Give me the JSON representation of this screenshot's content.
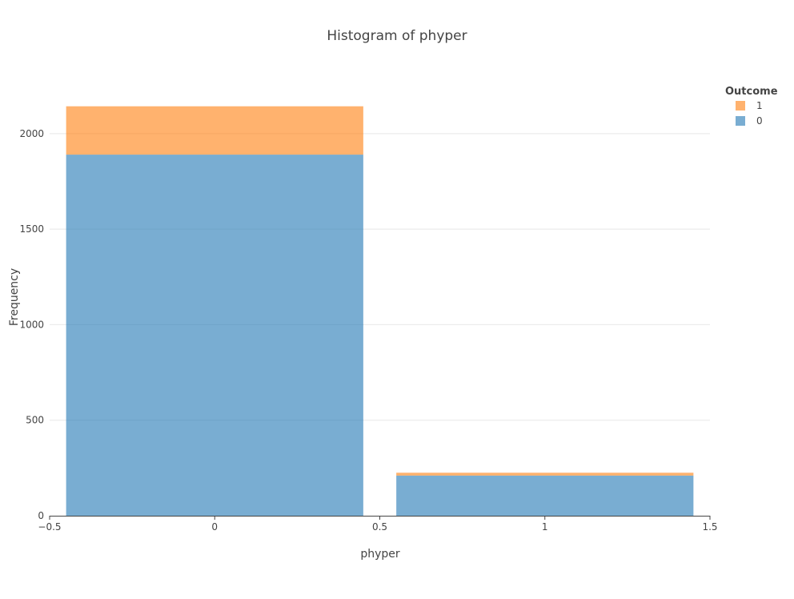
{
  "chart_data": {
    "type": "bar",
    "title": "Histogram of phyper",
    "xlabel": "phyper",
    "ylabel": "Frequency",
    "barmode": "stack",
    "bins": [
      {
        "x0": -0.45,
        "x1": 0.45
      },
      {
        "x0": 0.55,
        "x1": 1.45
      }
    ],
    "series": [
      {
        "name": "0",
        "values": [
          1890,
          210
        ],
        "color": "#1f77b4"
      },
      {
        "name": "1",
        "values": [
          253,
          15
        ],
        "color": "#ff7f0e"
      }
    ],
    "xlim": [
      -0.5,
      1.5
    ],
    "ylim": [
      0,
      2255
    ],
    "xticks": [
      -0.5,
      0,
      0.5,
      1,
      1.5
    ],
    "xtick_labels": [
      "−0.5",
      "0",
      "0.5",
      "1",
      "1.5"
    ],
    "yticks": [
      0,
      500,
      1000,
      1500,
      2000
    ],
    "ytick_labels": [
      "0",
      "500",
      "1000",
      "1500",
      "2000"
    ],
    "grid": true,
    "legend": {
      "title": "Outcome",
      "placement": "top-right",
      "entries": [
        {
          "label": "1",
          "color": "#ff7f0e"
        },
        {
          "label": "0",
          "color": "#1f77b4"
        }
      ]
    }
  }
}
